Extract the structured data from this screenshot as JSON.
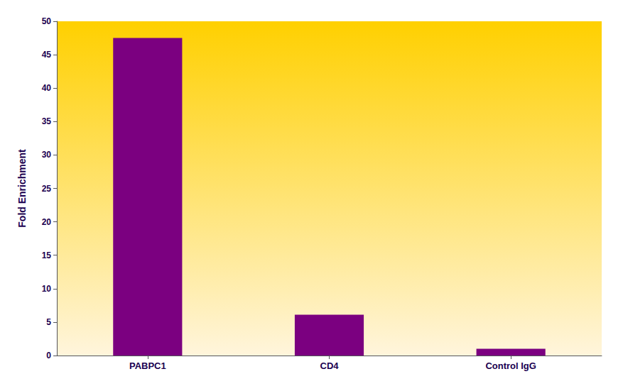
{
  "chart_data": {
    "type": "bar",
    "categories": [
      "PABPC1",
      "CD4",
      "Control IgG"
    ],
    "values": [
      47.5,
      6.1,
      1.0
    ],
    "color": "#7B0080",
    "ylabel": "Fold Enrichment",
    "ylim": [
      0,
      50
    ],
    "yticks": [
      0,
      5,
      10,
      15,
      20,
      25,
      30,
      35,
      40,
      45,
      50
    ],
    "grid": false
  }
}
